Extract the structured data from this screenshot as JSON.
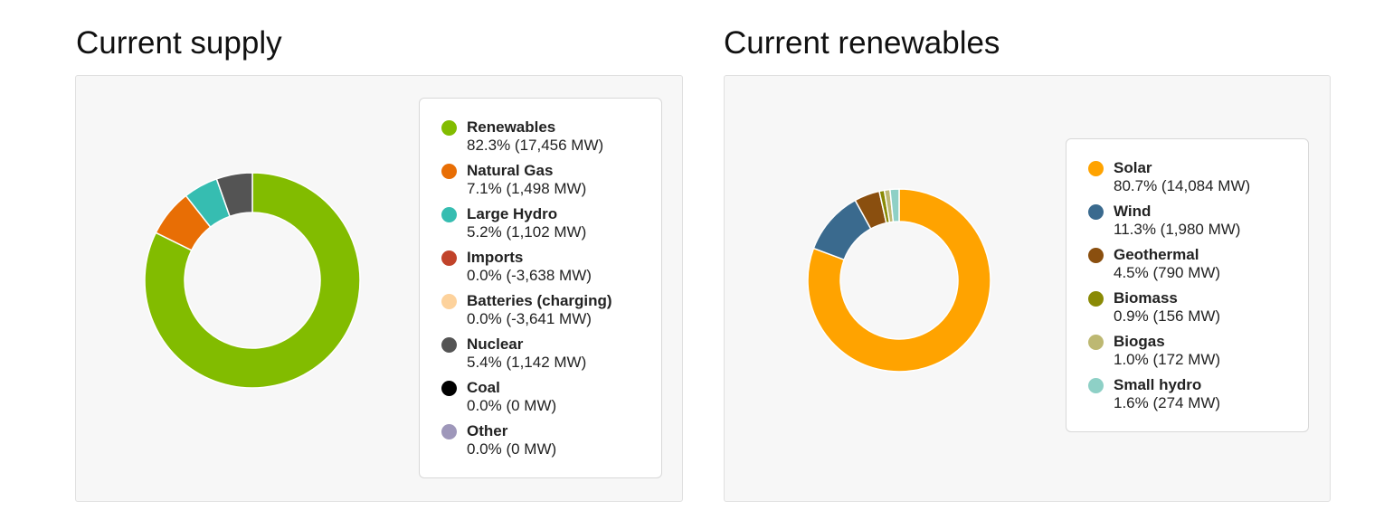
{
  "charts": {
    "supply": {
      "title": "Current supply"
    },
    "renewables": {
      "title": "Current renewables"
    }
  },
  "chart_data": [
    {
      "type": "pie",
      "title": "Current supply",
      "legend": "right",
      "categories": [
        "Renewables",
        "Natural Gas",
        "Large Hydro",
        "Imports",
        "Batteries (charging)",
        "Nuclear",
        "Coal",
        "Other"
      ],
      "percent_labels": [
        "82.3% (17,456 MW)",
        "7.1% (1,498 MW)",
        "5.2% (1,102 MW)",
        "0.0% (-3,638 MW)",
        "0.0% (-3,641 MW)",
        "5.4% (1,142 MW)",
        "0.0% (0 MW)",
        "0.0% (0 MW)"
      ],
      "values": [
        82.3,
        7.1,
        5.2,
        0.0,
        0.0,
        5.4,
        0.0,
        0.0
      ],
      "colors": [
        "#82bc00",
        "#e86e05",
        "#36bdb1",
        "#c1432a",
        "#fdd29c",
        "#545454",
        "#000000",
        "#9e97ba"
      ]
    },
    {
      "type": "pie",
      "title": "Current renewables",
      "legend": "right",
      "categories": [
        "Solar",
        "Wind",
        "Geothermal",
        "Biomass",
        "Biogas",
        "Small hydro"
      ],
      "percent_labels": [
        "80.7% (14,084 MW)",
        "11.3% (1,980 MW)",
        "4.5% (790 MW)",
        "0.9% (156 MW)",
        "1.0% (172 MW)",
        "1.6% (274 MW)"
      ],
      "values": [
        80.7,
        11.3,
        4.5,
        0.9,
        1.0,
        1.6
      ],
      "colors": [
        "#ffa300",
        "#3a6a8e",
        "#8a4f0f",
        "#8a8a05",
        "#bdb872",
        "#8ed0c6"
      ]
    }
  ]
}
